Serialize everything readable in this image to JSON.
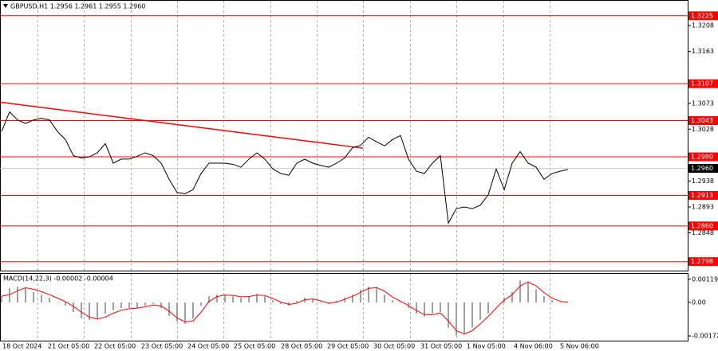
{
  "header": "GBPUSD,H1  1.2956 1.2961 1.2955 1.2960",
  "x_labels": [
    "18 Oct 2024",
    "21 Oct 05:00",
    "22 Oct 05:00",
    "23 Oct 05:00",
    "24 Oct 05:00",
    "25 Oct 05:00",
    "28 Oct 05:00",
    "29 Oct 05:00",
    "30 Oct 05:00",
    "31 Oct 05:00",
    "1 Nov 05:00",
    "4 Nov 06:00",
    "5 Nov 06:00"
  ],
  "chart_data": [
    {
      "type": "line",
      "color": "#000000",
      "grid": true,
      "ylim": [
        1.2781,
        1.3251
      ],
      "yticks": [
        1.3208,
        1.3163,
        1.3073,
        1.3028,
        1.2938,
        1.2893,
        1.2848
      ],
      "levels": [
        1.3225,
        1.3107,
        1.3043,
        {
          "value": 1.298,
          "label": "1.2980"
        },
        1.2913,
        {
          "value": 1.286,
          "label": "1.2860"
        },
        1.2798
      ],
      "level_color": "#ff0000",
      "current": {
        "value": 1.296,
        "label": "1.2960"
      },
      "trendline": [
        1.3075,
        1.2995
      ],
      "values": [
        1.3024,
        1.3058,
        1.3044,
        1.3038,
        1.3044,
        1.3047,
        1.3044,
        1.3024,
        1.301,
        1.2982,
        1.2978,
        1.298,
        1.2987,
        1.3003,
        1.2969,
        1.2976,
        1.2976,
        1.2981,
        1.2987,
        1.2982,
        1.2969,
        1.2941,
        1.2918,
        1.2916,
        1.2923,
        1.2951,
        1.2969,
        1.2969,
        1.2969,
        1.2967,
        1.2962,
        1.2976,
        1.2987,
        1.2976,
        1.2959,
        1.2951,
        1.2948,
        1.2969,
        1.2976,
        1.2969,
        1.2965,
        1.2962,
        1.2969,
        1.2978,
        1.2996,
        1.3,
        1.3014,
        1.3006,
        1.2999,
        1.301,
        1.3017,
        1.2976,
        1.2955,
        1.2951,
        1.2969,
        1.2982,
        1.2865,
        1.289,
        1.2893,
        1.289,
        1.2896,
        1.2914,
        1.2959,
        1.2923,
        1.2969,
        1.2989,
        1.2969,
        1.2962,
        1.2941,
        1.2951,
        1.2955,
        1.2958
      ]
    },
    {
      "type": "macd",
      "title": "MACD(14,22,3) -0.00002 -0.00004",
      "ylim": [
        -0.00196,
        0.00147
      ],
      "yticks": [
        0.00119,
        {
          "value": 0,
          "label": "0.00"
        },
        -0.00172
      ],
      "series": [
        {
          "type": "bar",
          "color": "#a0a0a0",
          "values": [
            0.00032,
            0.00073,
            0.00081,
            0.00073,
            0.00053,
            0.0004,
            0.00024,
            0,
            -0.00016,
            -0.00049,
            -0.00081,
            -0.00089,
            -0.00081,
            -0.00057,
            -0.0004,
            -0.00028,
            -0.00028,
            -0.00028,
            -0.00016,
            -8e-05,
            -0.00028,
            -0.00069,
            -0.00097,
            -0.00109,
            -0.00081,
            -0.00016,
            0.00032,
            0.0004,
            0.0004,
            0.00032,
            0.00024,
            0.00032,
            0.00044,
            0.00032,
            0.00012,
            -8e-05,
            -0.00016,
            8e-05,
            0.00024,
            0.00016,
            0,
            -8e-05,
            8e-05,
            0.00024,
            0.0004,
            0.00065,
            0.00081,
            0.00073,
            0.0004,
            0.00012,
            0,
            -0.00028,
            -0.00057,
            -0.00073,
            -0.00057,
            -0.00049,
            -0.00129,
            -0.0017,
            -0.00162,
            -0.00129,
            -0.00089,
            -0.00057,
            0,
            0.00024,
            0.00053,
            0.00113,
            0.00105,
            0.00065,
            0.00032,
            0.00012,
            0,
            0
          ]
        },
        {
          "type": "line",
          "color": "#ff0000",
          "values": [
            0.00032,
            0.0004,
            0.0006,
            0.00075,
            0.00068,
            0.00055,
            0.0004,
            0.00022,
            4e-05,
            -0.0002,
            -0.0005,
            -0.00075,
            -0.00085,
            -0.00075,
            -0.00055,
            -0.0004,
            -0.00032,
            -0.00029,
            -0.00022,
            -0.00014,
            -0.00018,
            -0.00045,
            -0.0008,
            -0.001,
            -0.00095,
            -0.0005,
            5e-05,
            0.0003,
            0.00038,
            0.00036,
            0.00029,
            0.0003,
            0.00038,
            0.00036,
            0.0002,
            2e-05,
            -0.0001,
            -4e-05,
            0.00014,
            0.00018,
            8e-05,
            -4e-05,
            2e-05,
            0.00016,
            0.00032,
            0.00052,
            0.00072,
            0.00076,
            0.00058,
            0.00028,
            6e-05,
            -0.00016,
            -0.00042,
            -0.00062,
            -0.00064,
            -0.00054,
            -0.00095,
            -0.00145,
            -0.00162,
            -0.00145,
            -0.0011,
            -0.00072,
            -0.00028,
            0.00012,
            0.0004,
            0.00085,
            0.00105,
            0.00085,
            0.0005,
            0.00022,
            6e-05,
            0
          ]
        }
      ]
    }
  ]
}
